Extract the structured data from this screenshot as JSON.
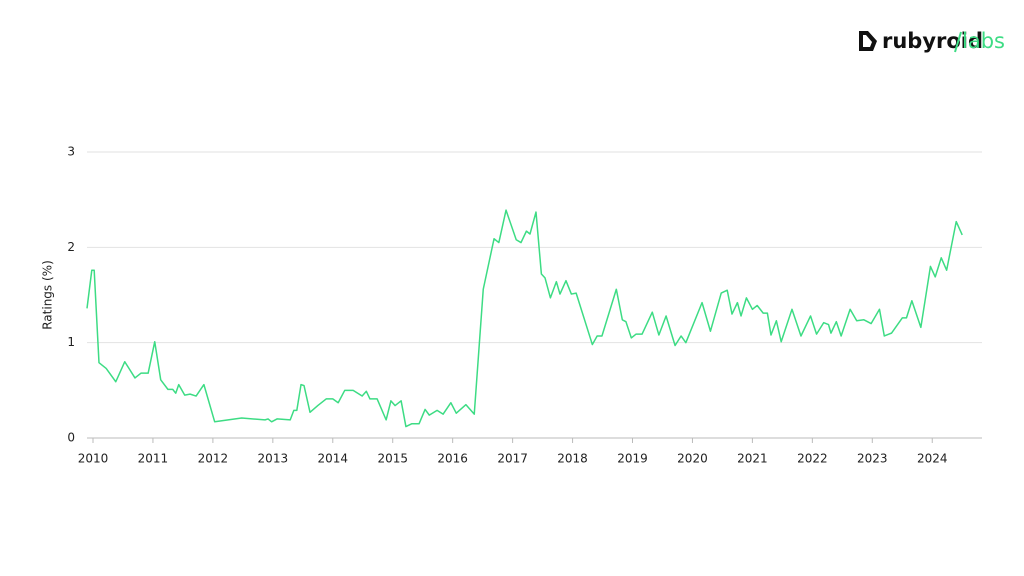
{
  "logo": {
    "name": "rubyroid",
    "suffix": "labs"
  },
  "chart_data": {
    "type": "line",
    "y_label": "Ratings (%)",
    "x": [
      2009.9,
      2009.98,
      2010.02,
      2010.1,
      2010.22,
      2010.38,
      2010.53,
      2010.7,
      2010.8,
      2010.92,
      2011.03,
      2011.13,
      2011.25,
      2011.33,
      2011.38,
      2011.43,
      2011.53,
      2011.62,
      2011.72,
      2011.85,
      2012.03,
      2012.48,
      2012.87,
      2012.92,
      2012.98,
      2013.07,
      2013.29,
      2013.35,
      2013.4,
      2013.47,
      2013.52,
      2013.62,
      2013.75,
      2013.89,
      2014.0,
      2014.09,
      2014.2,
      2014.34,
      2014.49,
      2014.56,
      2014.62,
      2014.74,
      2014.89,
      2014.97,
      2015.04,
      2015.14,
      2015.22,
      2015.32,
      2015.44,
      2015.54,
      2015.61,
      2015.74,
      2015.84,
      2015.97,
      2016.06,
      2016.22,
      2016.36,
      2016.51,
      2016.69,
      2016.77,
      2016.89,
      2017.06,
      2017.14,
      2017.23,
      2017.29,
      2017.39,
      2017.48,
      2017.54,
      2017.63,
      2017.73,
      2017.79,
      2017.89,
      2017.98,
      2018.06,
      2018.33,
      2018.41,
      2018.49,
      2018.73,
      2018.83,
      2018.89,
      2018.98,
      2019.06,
      2019.16,
      2019.33,
      2019.44,
      2019.56,
      2019.71,
      2019.81,
      2019.89,
      2020.16,
      2020.3,
      2020.48,
      2020.58,
      2020.66,
      2020.75,
      2020.81,
      2020.9,
      2021.0,
      2021.08,
      2021.18,
      2021.25,
      2021.31,
      2021.4,
      2021.48,
      2021.66,
      2021.81,
      2021.97,
      2022.07,
      2022.19,
      2022.27,
      2022.31,
      2022.4,
      2022.48,
      2022.63,
      2022.74,
      2022.86,
      2022.98,
      2023.12,
      2023.2,
      2023.32,
      2023.5,
      2023.57,
      2023.66,
      2023.81,
      2023.97,
      2024.05,
      2024.15,
      2024.24,
      2024.4,
      2024.5
    ],
    "series": [
      {
        "name": "Ratings",
        "color": "#3ddc84",
        "values": [
          1.36,
          1.76,
          1.76,
          0.79,
          0.73,
          0.59,
          0.8,
          0.63,
          0.68,
          0.68,
          1.01,
          0.61,
          0.51,
          0.51,
          0.47,
          0.56,
          0.45,
          0.46,
          0.44,
          0.56,
          0.17,
          0.21,
          0.19,
          0.2,
          0.17,
          0.2,
          0.19,
          0.29,
          0.29,
          0.56,
          0.55,
          0.27,
          0.34,
          0.41,
          0.41,
          0.37,
          0.5,
          0.5,
          0.44,
          0.49,
          0.41,
          0.41,
          0.19,
          0.39,
          0.34,
          0.39,
          0.12,
          0.15,
          0.15,
          0.3,
          0.24,
          0.29,
          0.25,
          0.37,
          0.26,
          0.35,
          0.25,
          1.56,
          2.09,
          2.05,
          2.39,
          2.08,
          2.05,
          2.17,
          2.14,
          2.37,
          1.72,
          1.68,
          1.47,
          1.64,
          1.51,
          1.65,
          1.51,
          1.52,
          0.98,
          1.07,
          1.07,
          1.56,
          1.24,
          1.22,
          1.05,
          1.09,
          1.09,
          1.32,
          1.08,
          1.28,
          0.97,
          1.07,
          1.0,
          1.42,
          1.12,
          1.52,
          1.55,
          1.3,
          1.42,
          1.28,
          1.47,
          1.35,
          1.39,
          1.31,
          1.31,
          1.08,
          1.23,
          1.01,
          1.35,
          1.07,
          1.28,
          1.09,
          1.21,
          1.19,
          1.1,
          1.22,
          1.07,
          1.35,
          1.23,
          1.24,
          1.2,
          1.35,
          1.07,
          1.1,
          1.26,
          1.26,
          1.44,
          1.16,
          1.8,
          1.69,
          1.89,
          1.76,
          2.27,
          2.13
        ]
      }
    ],
    "xlim": [
      2009.9,
      2024.83
    ],
    "xticks": [
      2010,
      2011,
      2012,
      2013,
      2014,
      2015,
      2016,
      2017,
      2018,
      2019,
      2020,
      2021,
      2022,
      2023,
      2024
    ],
    "ylim": [
      0,
      3
    ],
    "yticks": [
      0,
      1,
      2,
      3
    ],
    "grid": true
  }
}
